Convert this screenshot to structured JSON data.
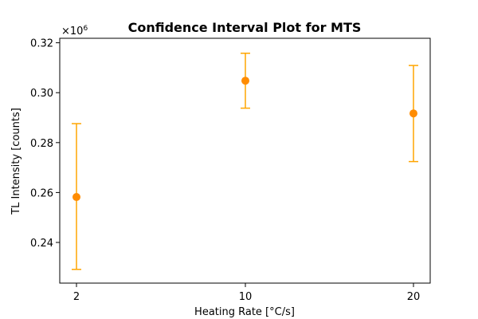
{
  "chart_data": {
    "type": "scatter",
    "title": "Confidence Interval Plot for MTS",
    "xlabel": "Heating Rate [°C/s]",
    "ylabel": "TL Intensity [counts]",
    "y_offset_label": {
      "base": "×10",
      "exponent": "6"
    },
    "categories": [
      "2",
      "10",
      "20"
    ],
    "points": [
      {
        "x": "2",
        "y": 0.2582,
        "lower": 0.2292,
        "upper": 0.2876
      },
      {
        "x": "10",
        "y": 0.3048,
        "lower": 0.2938,
        "upper": 0.3158
      },
      {
        "x": "20",
        "y": 0.2917,
        "lower": 0.2724,
        "upper": 0.3109
      }
    ],
    "yticks": [
      "0.24",
      "0.26",
      "0.28",
      "0.30",
      "0.32"
    ],
    "ytick_values": [
      0.24,
      0.26,
      0.28,
      0.3,
      0.32
    ],
    "ylim": [
      0.2237,
      0.3218
    ],
    "grid": false,
    "legend": false,
    "colors": {
      "marker": "#ff8c00",
      "errorbar": "#ffa500"
    }
  }
}
